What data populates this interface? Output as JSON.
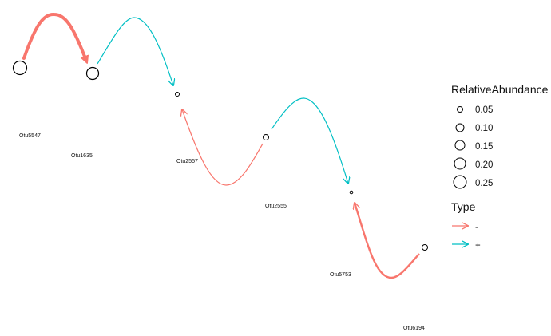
{
  "nodes": [
    {
      "id": "Otu5547",
      "label": "Otu5547",
      "abundance": 0.25
    },
    {
      "id": "Otu1635",
      "label": "Otu1635",
      "abundance": 0.2
    },
    {
      "id": "Otu2557",
      "label": "Otu2557",
      "abundance": 0.02
    },
    {
      "id": "Otu2555",
      "label": "Otu2555",
      "abundance": 0.05
    },
    {
      "id": "Otu5753",
      "label": "Otu5753",
      "abundance": 0.01
    },
    {
      "id": "Otu6194",
      "label": "Otu6194",
      "abundance": 0.05
    }
  ],
  "edges": [
    {
      "from": "Otu5547",
      "to": "Otu1635",
      "type": "-",
      "weight": "strong"
    },
    {
      "from": "Otu1635",
      "to": "Otu2557",
      "type": "+",
      "weight": "normal"
    },
    {
      "from": "Otu2555",
      "to": "Otu2557",
      "type": "-",
      "weight": "normal"
    },
    {
      "from": "Otu2555",
      "to": "Otu5753",
      "type": "+",
      "weight": "normal"
    },
    {
      "from": "Otu6194",
      "to": "Otu5753",
      "type": "-",
      "weight": "strong"
    }
  ],
  "legend": {
    "size_title": "RelativeAbundance",
    "size_items": [
      "0.05",
      "0.10",
      "0.15",
      "0.20",
      "0.25"
    ],
    "type_title": "Type",
    "type_items": [
      {
        "label": "-",
        "color": "#F8766D"
      },
      {
        "label": "+",
        "color": "#00BFC4"
      }
    ]
  },
  "colors": {
    "negative": "#F8766D",
    "positive": "#00BFC4",
    "node_stroke": "#000000"
  }
}
